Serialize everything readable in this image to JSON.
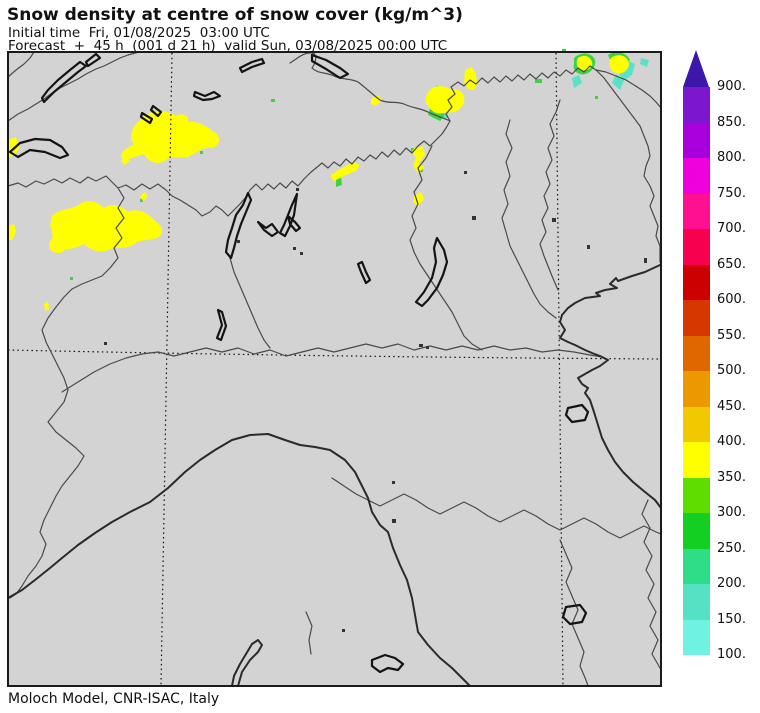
{
  "header": {
    "title": "Snow density at centre of snow cover (kg/m^3)",
    "initial_time_line": "Initial time  Fri, 01/08/2025  03:00 UTC",
    "forecast_line": "Forecast  +  45 h  (001 d 21 h)  valid Sun, 03/08/2025 00:00 UTC"
  },
  "footer": {
    "credit": "Moloch Model, CNR-ISAC, Italy"
  },
  "colorbar": {
    "orientation": "vertical",
    "arrow_color": "#3c18aa",
    "tick_labels": [
      "900.",
      "850.",
      "800.",
      "750.",
      "700.",
      "650.",
      "600.",
      "550.",
      "500.",
      "450.",
      "400.",
      "350.",
      "300.",
      "250.",
      "200.",
      "150.",
      "100."
    ],
    "tick_values": [
      900,
      850,
      800,
      750,
      700,
      650,
      600,
      550,
      500,
      450,
      400,
      350,
      300,
      250,
      200,
      150,
      100
    ],
    "segments_top_to_bottom": [
      {
        "range": "850-900",
        "color": "#7d17cf"
      },
      {
        "range": "800-850",
        "color": "#a800dd"
      },
      {
        "range": "750-800",
        "color": "#ee00dd"
      },
      {
        "range": "700-750",
        "color": "#ff1090"
      },
      {
        "range": "650-700",
        "color": "#f70050"
      },
      {
        "range": "600-650",
        "color": "#cc0000"
      },
      {
        "range": "550-600",
        "color": "#d63600"
      },
      {
        "range": "500-550",
        "color": "#e06600"
      },
      {
        "range": "450-500",
        "color": "#ec9800"
      },
      {
        "range": "400-450",
        "color": "#f2c800"
      },
      {
        "range": "350-400",
        "color": "#ffff00"
      },
      {
        "range": "300-350",
        "color": "#5fdc00"
      },
      {
        "range": "250-300",
        "color": "#12cf22"
      },
      {
        "range": "200-250",
        "color": "#2edd85"
      },
      {
        "range": "150-200",
        "color": "#55e2c4"
      },
      {
        "range": "100-150",
        "color": "#70f2e0"
      }
    ]
  },
  "map": {
    "background_color": "#d3d3d3",
    "border_line_color": "#4a4a4a",
    "coast_line_color": "#2a2a2a",
    "lake_line_color": "#141414",
    "snow_patch_colors": {
      "yellow_350_400": "#ffff00",
      "green_fringe": "#3cd246",
      "cyan_fringe": "#5ae1c8"
    }
  }
}
